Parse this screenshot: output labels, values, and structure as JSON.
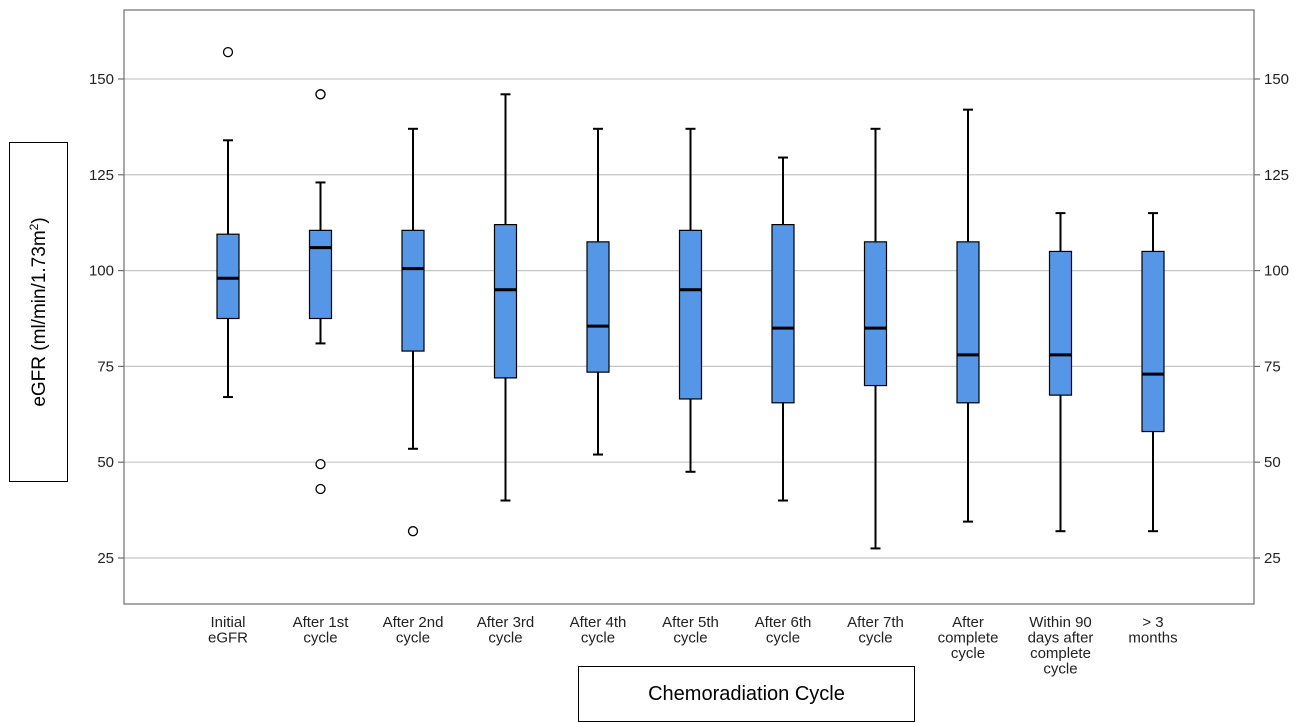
{
  "chart_data": {
    "type": "boxplot",
    "xlabel": "Chemoradiation Cycle",
    "ylabel_main": "eGFR (ml/min/1.73m",
    "ylabel_sup": "2",
    "ylabel_close": ")",
    "ylim": [
      13,
      168
    ],
    "yticks": [
      25,
      50,
      75,
      100,
      125,
      150
    ],
    "grid": true,
    "box_color": "#5596E6",
    "categories": [
      [
        "Initial",
        "eGFR"
      ],
      [
        "After 1st",
        "cycle"
      ],
      [
        "After 2nd",
        "cycle"
      ],
      [
        "After 3rd",
        "cycle"
      ],
      [
        "After 4th",
        "cycle"
      ],
      [
        "After 5th",
        "cycle"
      ],
      [
        "After 6th",
        "cycle"
      ],
      [
        "After 7th",
        "cycle"
      ],
      [
        "After",
        "complete",
        "cycle"
      ],
      [
        "Within 90",
        "days after",
        "complete",
        "cycle"
      ],
      [
        "> 3",
        "months"
      ]
    ],
    "boxes": [
      {
        "min": 67,
        "q1": 87.5,
        "median": 98,
        "q3": 109.5,
        "max": 134,
        "outliers": [
          157
        ]
      },
      {
        "min": 81,
        "q1": 87.5,
        "median": 106,
        "q3": 110.5,
        "max": 123,
        "outliers": [
          146,
          146,
          49.5,
          43
        ]
      },
      {
        "min": 53.5,
        "q1": 79,
        "median": 100.5,
        "q3": 110.5,
        "max": 137,
        "outliers": [
          32
        ]
      },
      {
        "min": 40,
        "q1": 72,
        "median": 95,
        "q3": 112,
        "max": 146,
        "outliers": []
      },
      {
        "min": 52,
        "q1": 73.5,
        "median": 85.5,
        "q3": 107.5,
        "max": 137,
        "outliers": []
      },
      {
        "min": 47.5,
        "q1": 66.5,
        "median": 95,
        "q3": 110.5,
        "max": 137,
        "outliers": []
      },
      {
        "min": 40,
        "q1": 65.5,
        "median": 85,
        "q3": 112,
        "max": 129.5,
        "outliers": []
      },
      {
        "min": 27.5,
        "q1": 70,
        "median": 85,
        "q3": 107.5,
        "max": 137,
        "outliers": []
      },
      {
        "min": 34.5,
        "q1": 65.5,
        "median": 78,
        "q3": 107.5,
        "max": 142,
        "outliers": []
      },
      {
        "min": 32,
        "q1": 67.5,
        "median": 78,
        "q3": 105,
        "max": 115,
        "outliers": []
      },
      {
        "min": 32,
        "q1": 58,
        "median": 73,
        "q3": 105,
        "max": 115,
        "outliers": []
      }
    ]
  }
}
